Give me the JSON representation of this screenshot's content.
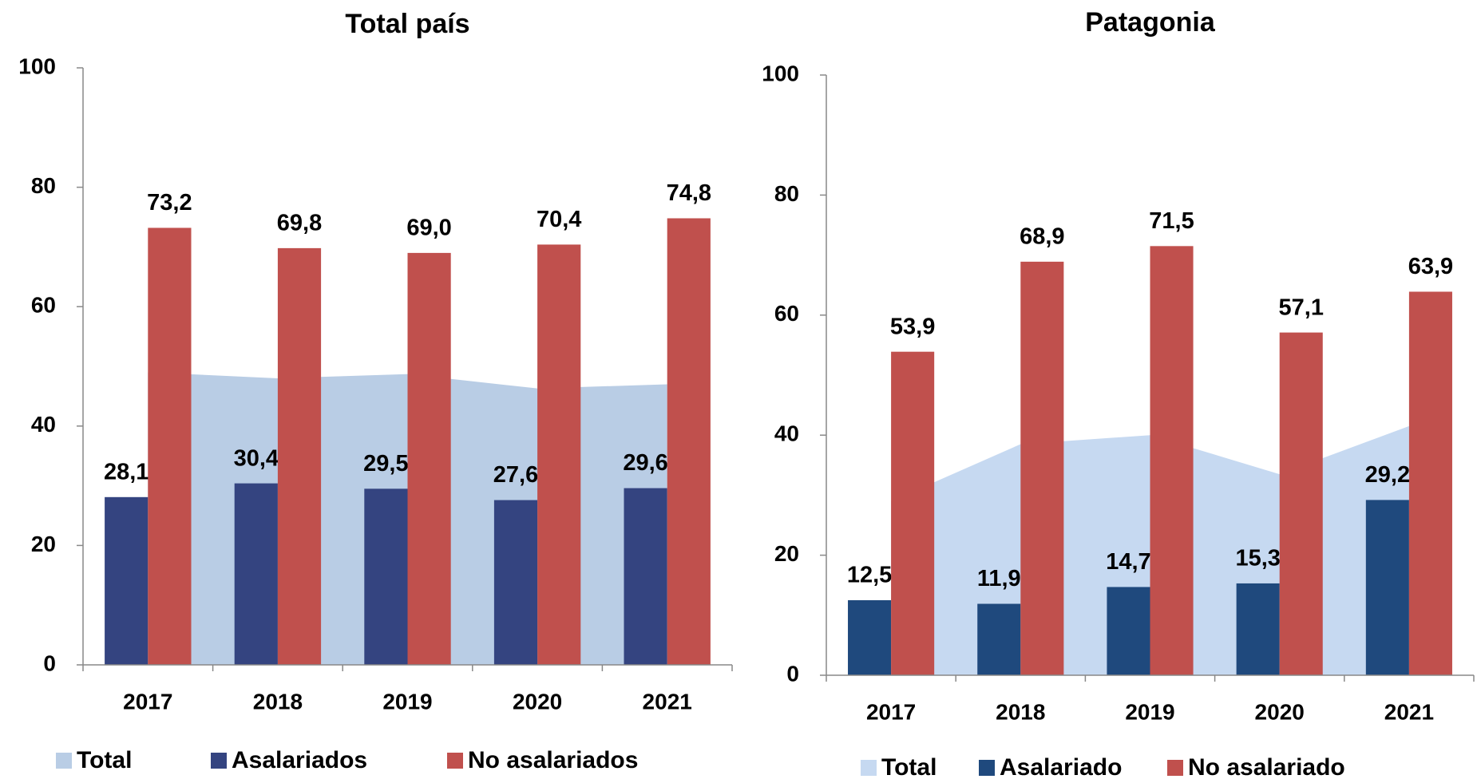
{
  "chart_data": [
    {
      "type": "bar",
      "title": "Total país",
      "categories": [
        "2017",
        "2018",
        "2019",
        "2020",
        "2021"
      ],
      "ylim": [
        0,
        100
      ],
      "yticks": [
        0,
        20,
        40,
        60,
        80,
        100
      ],
      "series": [
        {
          "name": "Total",
          "type": "area",
          "color": "#b9cde5",
          "values": [
            49.0,
            48.0,
            48.7,
            46.3,
            47.0
          ]
        },
        {
          "name": "Asalariados",
          "color": "#344480",
          "values": [
            28.1,
            30.4,
            29.5,
            27.6,
            29.6
          ],
          "value_labels": [
            "28,1",
            "30,4",
            "29,5",
            "27,6",
            "29,6"
          ]
        },
        {
          "name": "No asalariados",
          "color": "#c0504d",
          "values": [
            73.2,
            69.8,
            69.0,
            70.4,
            74.8
          ],
          "value_labels": [
            "73,2",
            "69,8",
            "69,0",
            "70,4",
            "74,8"
          ]
        }
      ]
    },
    {
      "type": "bar",
      "title": "Patagonia",
      "categories": [
        "2017",
        "2018",
        "2019",
        "2020",
        "2021"
      ],
      "ylim": [
        0,
        100
      ],
      "yticks": [
        0,
        20,
        40,
        60,
        80,
        100
      ],
      "series": [
        {
          "name": "Total",
          "type": "area",
          "color": "#c6d9f1",
          "values": [
            29.0,
            38.5,
            40.0,
            33.5,
            41.5
          ]
        },
        {
          "name": "Asalariado",
          "color": "#1f497d",
          "values": [
            12.5,
            11.9,
            14.7,
            15.3,
            29.2
          ],
          "value_labels": [
            "12,5",
            "11,9",
            "14,7",
            "15,3",
            "29,2"
          ]
        },
        {
          "name": "No asalariado",
          "color": "#c0504d",
          "values": [
            53.9,
            68.9,
            71.5,
            57.1,
            63.9
          ],
          "value_labels": [
            "53,9",
            "68,9",
            "71,5",
            "57,1",
            "63,9"
          ]
        }
      ]
    }
  ]
}
